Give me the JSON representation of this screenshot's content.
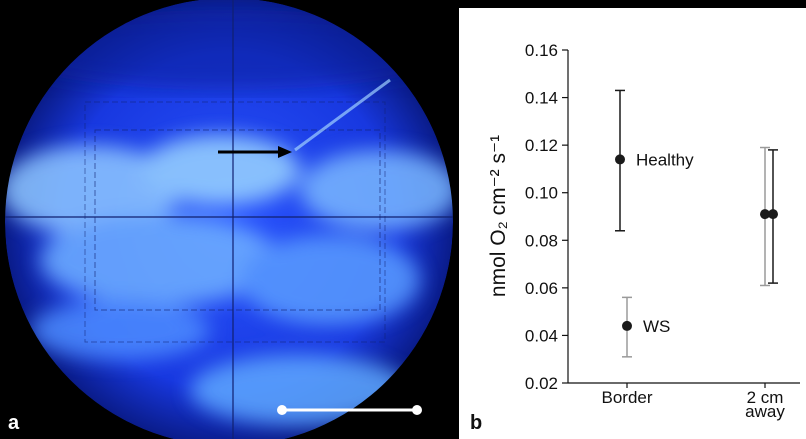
{
  "panel_labels": [
    "a",
    "b"
  ],
  "chart_data": {
    "type": "errorbar",
    "ylabel": "nmol O₂ cm⁻² s⁻¹",
    "categories": [
      "Border",
      "2 cm away"
    ],
    "series": [
      {
        "name": "WS",
        "color": "#9a9a9a",
        "marker_color": "#1a1a1a",
        "values": [
          0.044,
          0.091
        ],
        "lower": [
          0.031,
          0.061
        ],
        "upper": [
          0.056,
          0.119
        ]
      },
      {
        "name": "Healthy",
        "color": "#1a1a1a",
        "marker_color": "#1a1a1a",
        "values": [
          0.114,
          0.091
        ],
        "lower": [
          0.084,
          0.062
        ],
        "upper": [
          0.143,
          0.118
        ]
      }
    ],
    "ylim": [
      0.02,
      0.16
    ],
    "yticks": [
      0.02,
      0.04,
      0.06,
      0.08,
      {
        "value": 0.1,
        "label": "0.10"
      },
      0.12,
      0.14,
      0.16
    ]
  }
}
